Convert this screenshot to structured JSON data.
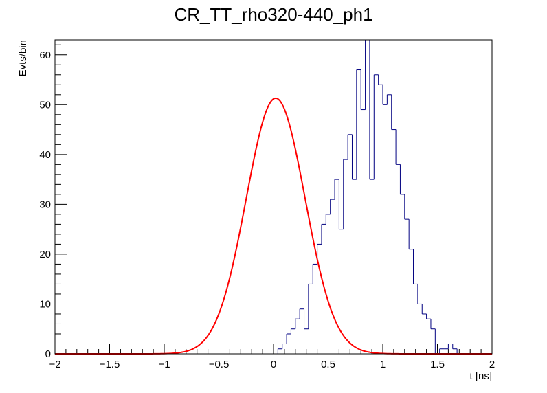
{
  "chart_data": {
    "type": "histogram",
    "title": "CR_TT_rho320-440_ph1",
    "xlabel": "t [ns]",
    "ylabel": "Evts/bin",
    "xlim": [
      -2,
      2
    ],
    "ylim": [
      0,
      63
    ],
    "x_ticks": [
      -2,
      -1.5,
      -1,
      -0.5,
      0,
      0.5,
      1,
      1.5,
      2
    ],
    "x_tick_labels": [
      "−2",
      "−1.5",
      "−1",
      "−0.5",
      "0",
      "0.5",
      "1",
      "1.5",
      "2"
    ],
    "y_ticks": [
      0,
      10,
      20,
      30,
      40,
      50,
      60
    ],
    "y_tick_labels": [
      "0",
      "10",
      "20",
      "30",
      "40",
      "50",
      "60"
    ],
    "grid": false,
    "legend": "none",
    "histogram": {
      "bin_width": 0.04,
      "bin_start": -2,
      "values": [
        0,
        0,
        0,
        0,
        0,
        0,
        0,
        0,
        0,
        0,
        0,
        0,
        0,
        0,
        0,
        0,
        0,
        0,
        0,
        0,
        0,
        0,
        0,
        0,
        0,
        0,
        0,
        0,
        0,
        0,
        0,
        0,
        0,
        0,
        0,
        0,
        0,
        0,
        0,
        0,
        0,
        0,
        0,
        0,
        0,
        0,
        0,
        0,
        0,
        0,
        0,
        1,
        2,
        4,
        5,
        7,
        9,
        5,
        14,
        18,
        22,
        26,
        28,
        31,
        35,
        25,
        39,
        44,
        35,
        57,
        49,
        63,
        35,
        56,
        54,
        50,
        52,
        45,
        38,
        32,
        27,
        21,
        14,
        10,
        8,
        7,
        5,
        0,
        1,
        1,
        2,
        1,
        0,
        0,
        0,
        0,
        0,
        0,
        0,
        0
      ],
      "color": "#000080"
    },
    "fit": {
      "type": "gaussian",
      "amplitude": 51.3,
      "mean": 0.02,
      "sigma": 0.27,
      "x_range": [
        -2,
        2
      ],
      "color": "#ff0000"
    }
  }
}
